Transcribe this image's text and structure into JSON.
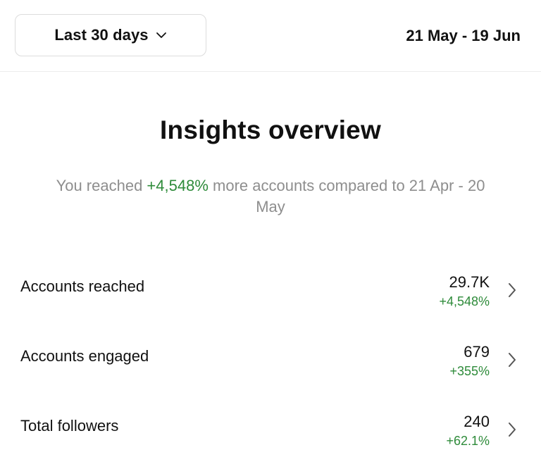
{
  "header": {
    "range_label": "Last 30 days",
    "date_range": "21 May - 19 Jun"
  },
  "overview": {
    "title": "Insights overview",
    "summary_prefix": "You reached ",
    "summary_change": "+4,548%",
    "summary_suffix": " more accounts compared to 21 Apr - 20 May"
  },
  "metrics": [
    {
      "label": "Accounts reached",
      "value": "29.7K",
      "change": "+4,548%"
    },
    {
      "label": "Accounts engaged",
      "value": "679",
      "change": "+355%"
    },
    {
      "label": "Total followers",
      "value": "240",
      "change": "+62.1%"
    }
  ],
  "colors": {
    "positive": "#2e8b3a",
    "muted_text": "#8e8e8e",
    "divider": "#ececec"
  },
  "icons": {
    "dropdown": "chevron-down-icon",
    "row": "chevron-right-icon"
  }
}
